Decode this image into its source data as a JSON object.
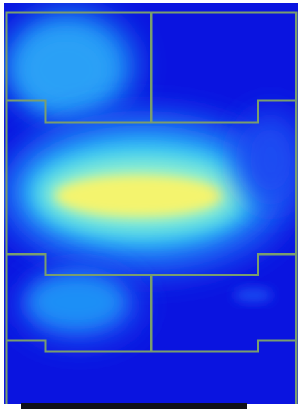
{
  "figure": {
    "kind": "heatmap-floorplan-overlay",
    "colors": {
      "background_low": "#0a14e0",
      "cold": "#1a4cf2",
      "cool": "#1e8ff6",
      "mid": "#37c8f5",
      "warm": "#8ff0d0",
      "hot": "#f4f46e",
      "wall": "#7a9e6e",
      "frame": "#ffffff",
      "footer_bar": "#101018"
    }
  }
}
